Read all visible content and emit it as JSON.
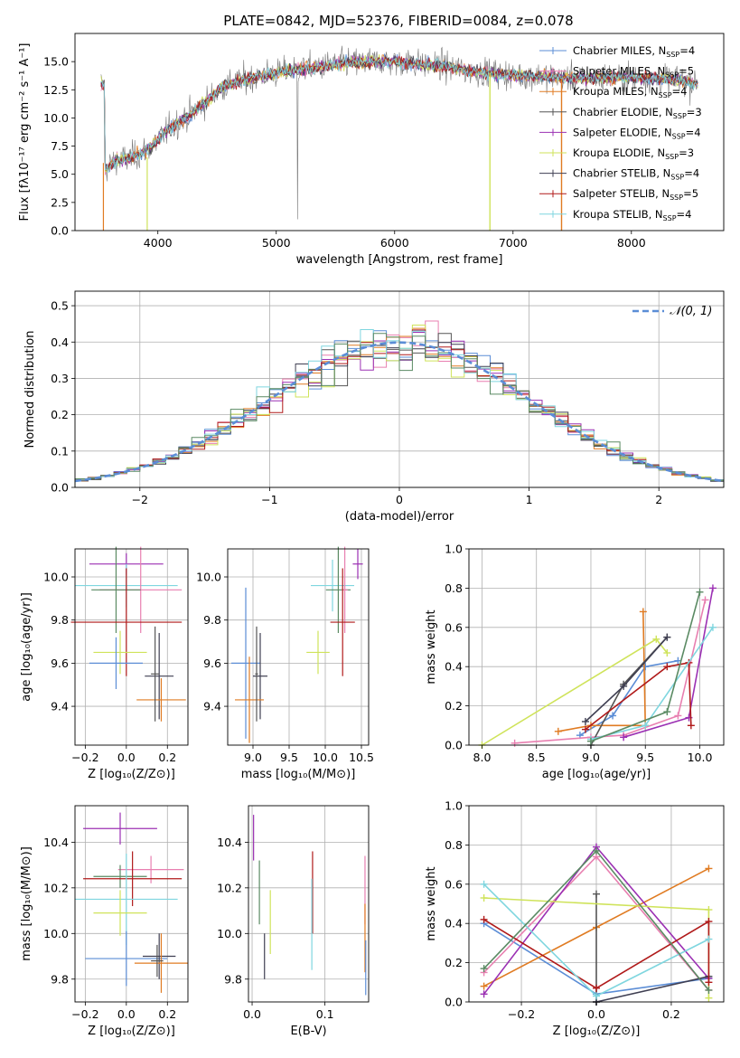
{
  "figure": {
    "title": "PLATE=0842, MJD=52376, FIBERID=0084, z=0.078"
  },
  "colors": {
    "Chabrier MILES": "#5b8dd6",
    "Salpeter MILES": "#e87fb0",
    "Kroupa MILES": "#e07b22",
    "Chabrier ELODIE": "#555555",
    "Salpeter ELODIE": "#9b30b3",
    "Kroupa ELODIE": "#cfe35a",
    "Chabrier STELIB": "#3f3f52",
    "Salpeter STELIB": "#b01a1a",
    "Kroupa STELIB": "#7fd6df",
    "ELODIE-green": "#5a8a63",
    "normal_curve": "#5b8dd6"
  },
  "chart_data": [
    {
      "id": "spectrum",
      "type": "line",
      "title": "PLATE=0842, MJD=52376, FIBERID=0084, z=0.078",
      "xlabel": "wavelength [Angstrom, rest frame]",
      "ylabel": "Flux [fλ10⁻¹⁷ erg cm⁻² s⁻¹ A⁻¹]",
      "xlim": [
        3300,
        8780
      ],
      "ylim": [
        0,
        17.5
      ],
      "xticks": [
        4000,
        5000,
        6000,
        7000,
        8000
      ],
      "yticks": [
        0.0,
        2.5,
        5.0,
        7.5,
        10.0,
        12.5,
        15.0
      ],
      "ytick_labels": [
        "0.0",
        "2.5",
        "5.0",
        "7.5",
        "10.0",
        "12.5",
        "15.0"
      ],
      "legend_position": "right",
      "legend": [
        {
          "label": "Chabrier MILES, N",
          "sub": "SSP",
          "suffix": "=4",
          "color": "#5b8dd6"
        },
        {
          "label": "Salpeter MILES, N",
          "sub": "SSP",
          "suffix": "=5",
          "color": "#e87fb0"
        },
        {
          "label": "Kroupa MILES, N",
          "sub": "SSP",
          "suffix": "=4",
          "color": "#e07b22"
        },
        {
          "label": "Chabrier ELODIE, N",
          "sub": "SSP",
          "suffix": "=3",
          "color": "#555555"
        },
        {
          "label": "Salpeter ELODIE, N",
          "sub": "SSP",
          "suffix": "=4",
          "color": "#9b30b3"
        },
        {
          "label": "Kroupa ELODIE, N",
          "sub": "SSP",
          "suffix": "=3",
          "color": "#cfe35a"
        },
        {
          "label": "Chabrier STELIB, N",
          "sub": "SSP",
          "suffix": "=4",
          "color": "#3f3f52"
        },
        {
          "label": "Salpeter STELIB, N",
          "sub": "SSP",
          "suffix": "=5",
          "color": "#b01a1a"
        },
        {
          "label": "Kroupa STELIB, N",
          "sub": "SSP",
          "suffix": "=4",
          "color": "#7fd6df"
        }
      ],
      "continuum": {
        "x": [
          3550,
          3650,
          3750,
          3850,
          3950,
          4050,
          4150,
          4250,
          4350,
          4450,
          4550,
          4700,
          4850,
          5000,
          5200,
          5400,
          5600,
          5800,
          6000,
          6200,
          6400,
          6600,
          6800,
          7000,
          7200,
          7400,
          7600,
          7800,
          8000,
          8200,
          8400,
          8550
        ],
        "y": [
          5.5,
          6.2,
          6.4,
          6.8,
          7.5,
          8.6,
          9.5,
          10.1,
          11.0,
          11.8,
          12.8,
          13.3,
          13.7,
          14.0,
          14.3,
          14.6,
          14.9,
          15.0,
          15.0,
          14.8,
          14.6,
          14.2,
          14.0,
          13.8,
          13.7,
          13.6,
          13.5,
          13.6,
          13.6,
          13.5,
          13.4,
          13.0
        ]
      }
    },
    {
      "id": "residuals",
      "type": "histogram",
      "xlabel": "(data-model)/error",
      "ylabel": "Normed distribution",
      "xlim": [
        -2.5,
        2.5
      ],
      "ylim": [
        0,
        0.54
      ],
      "xticks": [
        -2,
        -1,
        0,
        1,
        2
      ],
      "xtick_labels": [
        "−2",
        "−1",
        "0",
        "1",
        "2"
      ],
      "yticks": [
        0.0,
        0.1,
        0.2,
        0.3,
        0.4,
        0.5
      ],
      "ytick_labels": [
        "0.0",
        "0.1",
        "0.2",
        "0.3",
        "0.4",
        "0.5"
      ],
      "bin_width": 0.1,
      "legend": [
        {
          "label": "𝒩(0, 1)",
          "color": "#5b8dd6",
          "style": "dashed"
        }
      ],
      "legend_position": "top-right"
    },
    {
      "id": "age-vs-Z",
      "type": "scatter",
      "xlabel": "Z [log₁₀(Z/Z⊙)]",
      "ylabel": "age  [log₁₀(age/yr)]",
      "xlim": [
        -0.25,
        0.3
      ],
      "ylim": [
        9.22,
        10.13
      ],
      "xticks": [
        -0.2,
        0.0,
        0.2
      ],
      "xtick_labels": [
        "−0.2",
        "0.0",
        "0.2"
      ],
      "yticks": [
        9.4,
        9.6,
        9.8,
        10.0
      ],
      "ytick_labels": [
        "9.4",
        "9.6",
        "9.8",
        "10.0"
      ],
      "points": [
        {
          "series": "Salpeter ELODIE",
          "x": 0.0,
          "xerr": 0.18,
          "y": 10.06,
          "yerr": 0.05,
          "color": "#9b30b3"
        },
        {
          "series": "Kroupa STELIB",
          "x": 0.0,
          "xerr": 0.25,
          "y": 9.96,
          "yerr": 0.1,
          "color": "#7fd6df"
        },
        {
          "series": "Salpeter MILES",
          "x": 0.07,
          "xerr": 0.2,
          "y": 9.94,
          "yerr": 0.2,
          "color": "#e87fb0"
        },
        {
          "series": "ELODIE-green",
          "x": -0.05,
          "xerr": 0.12,
          "y": 9.94,
          "yerr": 0.2,
          "color": "#5a8a63"
        },
        {
          "series": "Salpeter STELIB",
          "x": 0.0,
          "xerr": 0.27,
          "y": 9.79,
          "yerr": 0.25,
          "color": "#b01a1a"
        },
        {
          "series": "Kroupa ELODIE",
          "x": -0.03,
          "xerr": 0.13,
          "y": 9.65,
          "yerr": 0.1,
          "color": "#cfe35a"
        },
        {
          "series": "Chabrier MILES",
          "x": -0.05,
          "xerr": 0.13,
          "y": 9.6,
          "yerr": 0.12,
          "color": "#5b8dd6"
        },
        {
          "series": "Chabrier STELIB",
          "x": 0.16,
          "xerr": 0.07,
          "y": 9.54,
          "yerr": 0.2,
          "color": "#3f3f52"
        },
        {
          "series": "Kroupa MILES",
          "x": 0.17,
          "xerr": 0.12,
          "y": 9.43,
          "yerr": 0.1,
          "color": "#e07b22"
        },
        {
          "series": "Chabrier ELODIE",
          "x": 0.14,
          "xerr": 0.02,
          "y": 9.55,
          "yerr": 0.22,
          "color": "#555555"
        }
      ]
    },
    {
      "id": "age-vs-mass",
      "type": "scatter",
      "xlabel": "mass [log₁₀(M/M⊙)]",
      "ylabel": "",
      "xlim": [
        8.65,
        10.6
      ],
      "ylim": [
        9.22,
        10.13
      ],
      "xticks": [
        9.0,
        9.5,
        10.0,
        10.5
      ],
      "xtick_labels": [
        "9.0",
        "9.5",
        "10.0",
        "10.5"
      ],
      "yticks": [
        9.4,
        9.6,
        9.8,
        10.0
      ],
      "ytick_labels": [
        "9.4",
        "9.6",
        "9.8",
        "10.0"
      ],
      "points": [
        {
          "series": "Salpeter ELODIE",
          "x": 10.45,
          "xerr": 0.07,
          "y": 10.06,
          "yerr": 0.07,
          "color": "#9b30b3"
        },
        {
          "series": "Kroupa STELIB",
          "x": 10.1,
          "xerr": 0.3,
          "y": 9.96,
          "yerr": 0.12,
          "color": "#7fd6df"
        },
        {
          "series": "ELODIE-green",
          "x": 10.18,
          "xerr": 0.17,
          "y": 9.94,
          "yerr": 0.2,
          "color": "#5a8a63"
        },
        {
          "series": "Salpeter MILES",
          "x": 10.27,
          "xerr": 0.04,
          "y": 9.94,
          "yerr": 0.2,
          "color": "#e87fb0"
        },
        {
          "series": "Salpeter STELIB",
          "x": 10.24,
          "xerr": 0.17,
          "y": 9.79,
          "yerr": 0.25,
          "color": "#b01a1a"
        },
        {
          "series": "Kroupa ELODIE",
          "x": 9.9,
          "xerr": 0.16,
          "y": 9.65,
          "yerr": 0.1,
          "color": "#cfe35a"
        },
        {
          "series": "Chabrier MILES",
          "x": 8.9,
          "xerr": 0.2,
          "y": 9.6,
          "yerr": 0.35,
          "color": "#5b8dd6"
        },
        {
          "series": "Chabrier STELIB",
          "x": 9.1,
          "xerr": 0.1,
          "y": 9.54,
          "yerr": 0.2,
          "color": "#3f3f52"
        },
        {
          "series": "Kroupa MILES",
          "x": 8.95,
          "xerr": 0.2,
          "y": 9.43,
          "yerr": 0.2,
          "color": "#e07b22"
        },
        {
          "series": "Chabrier ELODIE",
          "x": 9.05,
          "xerr": 0.02,
          "y": 9.55,
          "yerr": 0.22,
          "color": "#555555"
        }
      ]
    },
    {
      "id": "weight-vs-age",
      "type": "line",
      "xlabel": "age  [log₁₀(age/yr)]",
      "ylabel": "mass weight",
      "xlim": [
        7.88,
        10.22
      ],
      "ylim": [
        0.0,
        1.0
      ],
      "xticks": [
        8.0,
        8.5,
        9.0,
        9.5,
        10.0
      ],
      "xtick_labels": [
        "8.0",
        "8.5",
        "9.0",
        "9.5",
        "10.0"
      ],
      "yticks": [
        0.0,
        0.2,
        0.4,
        0.6,
        0.8,
        1.0
      ],
      "ytick_labels": [
        "0.0",
        "0.2",
        "0.4",
        "0.6",
        "0.8",
        "1.0"
      ],
      "series": [
        {
          "name": "Chabrier MILES",
          "x": [
            8.9,
            9.2,
            9.5,
            9.8
          ],
          "y": [
            0.05,
            0.15,
            0.4,
            0.43
          ],
          "color": "#5b8dd6"
        },
        {
          "name": "Salpeter MILES",
          "x": [
            8.3,
            9.0,
            9.3,
            9.8,
            10.05
          ],
          "y": [
            0.01,
            0.04,
            0.05,
            0.15,
            0.74
          ],
          "color": "#e87fb0"
        },
        {
          "name": "Kroupa MILES",
          "x": [
            8.7,
            9.0,
            9.5,
            9.48
          ],
          "y": [
            0.07,
            0.1,
            0.1,
            0.68
          ],
          "color": "#e07b22"
        },
        {
          "name": "Chabrier ELODIE",
          "x": [
            9.0,
            9.3,
            9.7
          ],
          "y": [
            0.0,
            0.31,
            0.55
          ],
          "color": "#555555"
        },
        {
          "name": "Salpeter ELODIE",
          "x": [
            9.3,
            9.9,
            10.12
          ],
          "y": [
            0.04,
            0.14,
            0.8
          ],
          "color": "#9b30b3"
        },
        {
          "name": "Kroupa ELODIE",
          "x": [
            8.0,
            9.6,
            9.7
          ],
          "y": [
            0.0,
            0.54,
            0.47
          ],
          "color": "#cfe35a"
        },
        {
          "name": "Chabrier STELIB",
          "x": [
            8.95,
            9.3,
            9.7
          ],
          "y": [
            0.12,
            0.3,
            0.55
          ],
          "color": "#3f3f52"
        },
        {
          "name": "Salpeter STELIB",
          "x": [
            8.95,
            9.7,
            9.9,
            9.92
          ],
          "y": [
            0.08,
            0.4,
            0.42,
            0.1
          ],
          "color": "#b01a1a"
        },
        {
          "name": "Kroupa STELIB",
          "x": [
            9.0,
            9.5,
            10.12
          ],
          "y": [
            0.03,
            0.1,
            0.6
          ],
          "color": "#7fd6df"
        },
        {
          "name": "ELODIE-green",
          "x": [
            9.0,
            9.7,
            10.0
          ],
          "y": [
            0.02,
            0.17,
            0.78
          ],
          "color": "#5a8a63"
        }
      ]
    },
    {
      "id": "mass-vs-Z",
      "type": "scatter",
      "xlabel": "Z [log₁₀(Z/Z⊙)]",
      "ylabel": "mass [log₁₀(M/M⊙)]",
      "xlim": [
        -0.25,
        0.3
      ],
      "ylim": [
        9.7,
        10.56
      ],
      "xticks": [
        -0.2,
        0.0,
        0.2
      ],
      "xtick_labels": [
        "−0.2",
        "0.0",
        "0.2"
      ],
      "yticks": [
        9.8,
        10.0,
        10.2,
        10.4
      ],
      "ytick_labels": [
        "9.8",
        "10.0",
        "10.2",
        "10.4"
      ],
      "points": [
        {
          "series": "Salpeter ELODIE",
          "x": -0.03,
          "xerr": 0.18,
          "y": 10.46,
          "yerr": 0.07,
          "color": "#9b30b3"
        },
        {
          "series": "Salpeter MILES",
          "x": 0.12,
          "xerr": 0.16,
          "y": 10.28,
          "yerr": 0.06,
          "color": "#e87fb0"
        },
        {
          "series": "ELODIE-green",
          "x": -0.03,
          "xerr": 0.13,
          "y": 10.25,
          "yerr": 0.05,
          "color": "#5a8a63"
        },
        {
          "series": "Salpeter STELIB",
          "x": 0.03,
          "xerr": 0.24,
          "y": 10.24,
          "yerr": 0.12,
          "color": "#b01a1a"
        },
        {
          "series": "Kroupa STELIB",
          "x": 0.0,
          "xerr": 0.25,
          "y": 10.15,
          "yerr": 0.2,
          "color": "#7fd6df"
        },
        {
          "series": "Kroupa ELODIE",
          "x": -0.03,
          "xerr": 0.13,
          "y": 10.09,
          "yerr": 0.1,
          "color": "#cfe35a"
        },
        {
          "series": "Chabrier MILES",
          "x": 0.0,
          "xerr": 0.2,
          "y": 9.89,
          "yerr": 0.12,
          "color": "#5b8dd6"
        },
        {
          "series": "Chabrier STELIB",
          "x": 0.16,
          "xerr": 0.08,
          "y": 9.9,
          "yerr": 0.1,
          "color": "#3f3f52"
        },
        {
          "series": "Kroupa MILES",
          "x": 0.17,
          "xerr": 0.13,
          "y": 9.87,
          "yerr": 0.13,
          "color": "#e07b22"
        },
        {
          "series": "Chabrier ELODIE",
          "x": 0.15,
          "xerr": 0.03,
          "y": 9.88,
          "yerr": 0.07,
          "color": "#555555"
        }
      ]
    },
    {
      "id": "mass-vs-ebv",
      "type": "scatter",
      "xlabel": "E(B-V)",
      "ylabel": "",
      "xlim": [
        -0.005,
        0.16
      ],
      "ylim": [
        9.7,
        10.56
      ],
      "xticks": [
        0.0,
        0.1
      ],
      "xtick_labels": [
        "0.0",
        "0.1"
      ],
      "yticks": [
        9.8,
        10.0,
        10.2,
        10.4
      ],
      "ytick_labels": [
        "9.8",
        "10.0",
        "10.2",
        "10.4"
      ],
      "points": [
        {
          "series": "Salpeter ELODIE",
          "x": 0.002,
          "y": 10.42,
          "yerr": 0.1,
          "color": "#9b30b3"
        },
        {
          "series": "ELODIE-green",
          "x": 0.01,
          "y": 10.18,
          "yerr": 0.14,
          "color": "#5a8a63"
        },
        {
          "series": "Chabrier STELIB",
          "x": 0.017,
          "y": 9.9,
          "yerr": 0.1,
          "color": "#3f3f52"
        },
        {
          "series": "Kroupa ELODIE",
          "x": 0.025,
          "y": 10.05,
          "yerr": 0.14,
          "color": "#cfe35a"
        },
        {
          "series": "Salpeter STELIB",
          "x": 0.083,
          "y": 10.18,
          "yerr": 0.18,
          "color": "#b01a1a"
        },
        {
          "series": "Kroupa STELIB",
          "x": 0.082,
          "y": 10.04,
          "yerr": 0.2,
          "color": "#7fd6df"
        },
        {
          "series": "Salpeter MILES",
          "x": 0.155,
          "y": 10.19,
          "yerr": 0.15,
          "color": "#e87fb0"
        },
        {
          "series": "Kroupa MILES",
          "x": 0.155,
          "y": 9.98,
          "yerr": 0.15,
          "color": "#e07b22"
        },
        {
          "series": "Chabrier MILES",
          "x": 0.156,
          "y": 9.85,
          "yerr": 0.12,
          "color": "#5b8dd6"
        }
      ]
    },
    {
      "id": "weight-vs-Z",
      "type": "line",
      "xlabel": "Z [log₁₀(Z/Z⊙)]",
      "ylabel": "mass weight",
      "xlim": [
        -0.34,
        0.34
      ],
      "ylim": [
        0.0,
        1.0
      ],
      "xticks": [
        -0.2,
        0.0,
        0.2
      ],
      "xtick_labels": [
        "−0.2",
        "0.0",
        "0.2"
      ],
      "yticks": [
        0.0,
        0.2,
        0.4,
        0.6,
        0.8,
        1.0
      ],
      "ytick_labels": [
        "0.0",
        "0.2",
        "0.4",
        "0.6",
        "0.8",
        "1.0"
      ],
      "series": [
        {
          "name": "Chabrier MILES",
          "x": [
            -0.3,
            0.0,
            0.3
          ],
          "y": [
            0.4,
            0.04,
            0.12
          ],
          "color": "#5b8dd6"
        },
        {
          "name": "Salpeter MILES",
          "x": [
            -0.3,
            0.0,
            0.3
          ],
          "y": [
            0.15,
            0.74,
            0.06
          ],
          "color": "#e87fb0"
        },
        {
          "name": "Kroupa MILES",
          "x": [
            -0.3,
            0.0,
            0.3
          ],
          "y": [
            0.08,
            0.38,
            0.68
          ],
          "color": "#e07b22"
        },
        {
          "name": "Chabrier ELODIE",
          "x": [
            0.0,
            0.0,
            0.0
          ],
          "y": [
            0.0,
            0.55,
            0.0
          ],
          "color": "#555555"
        },
        {
          "name": "Salpeter ELODIE",
          "x": [
            -0.3,
            0.0,
            0.3
          ],
          "y": [
            0.04,
            0.79,
            0.12
          ],
          "color": "#9b30b3"
        },
        {
          "name": "Kroupa ELODIE",
          "x": [
            -0.3,
            0.3,
            0.3
          ],
          "y": [
            0.53,
            0.47,
            0.02
          ],
          "color": "#cfe35a"
        },
        {
          "name": "Chabrier STELIB",
          "x": [
            0.0,
            0.3
          ],
          "y": [
            0.0,
            0.13
          ],
          "color": "#3f3f52"
        },
        {
          "name": "Salpeter STELIB",
          "x": [
            -0.3,
            0.0,
            0.3,
            0.3
          ],
          "y": [
            0.42,
            0.07,
            0.41,
            0.1
          ],
          "color": "#b01a1a"
        },
        {
          "name": "Kroupa STELIB",
          "x": [
            -0.3,
            0.0,
            0.3
          ],
          "y": [
            0.6,
            0.03,
            0.32
          ],
          "color": "#7fd6df"
        },
        {
          "name": "ELODIE-green",
          "x": [
            -0.3,
            0.0,
            0.3
          ],
          "y": [
            0.17,
            0.77,
            0.06
          ],
          "color": "#5a8a63"
        }
      ]
    }
  ]
}
